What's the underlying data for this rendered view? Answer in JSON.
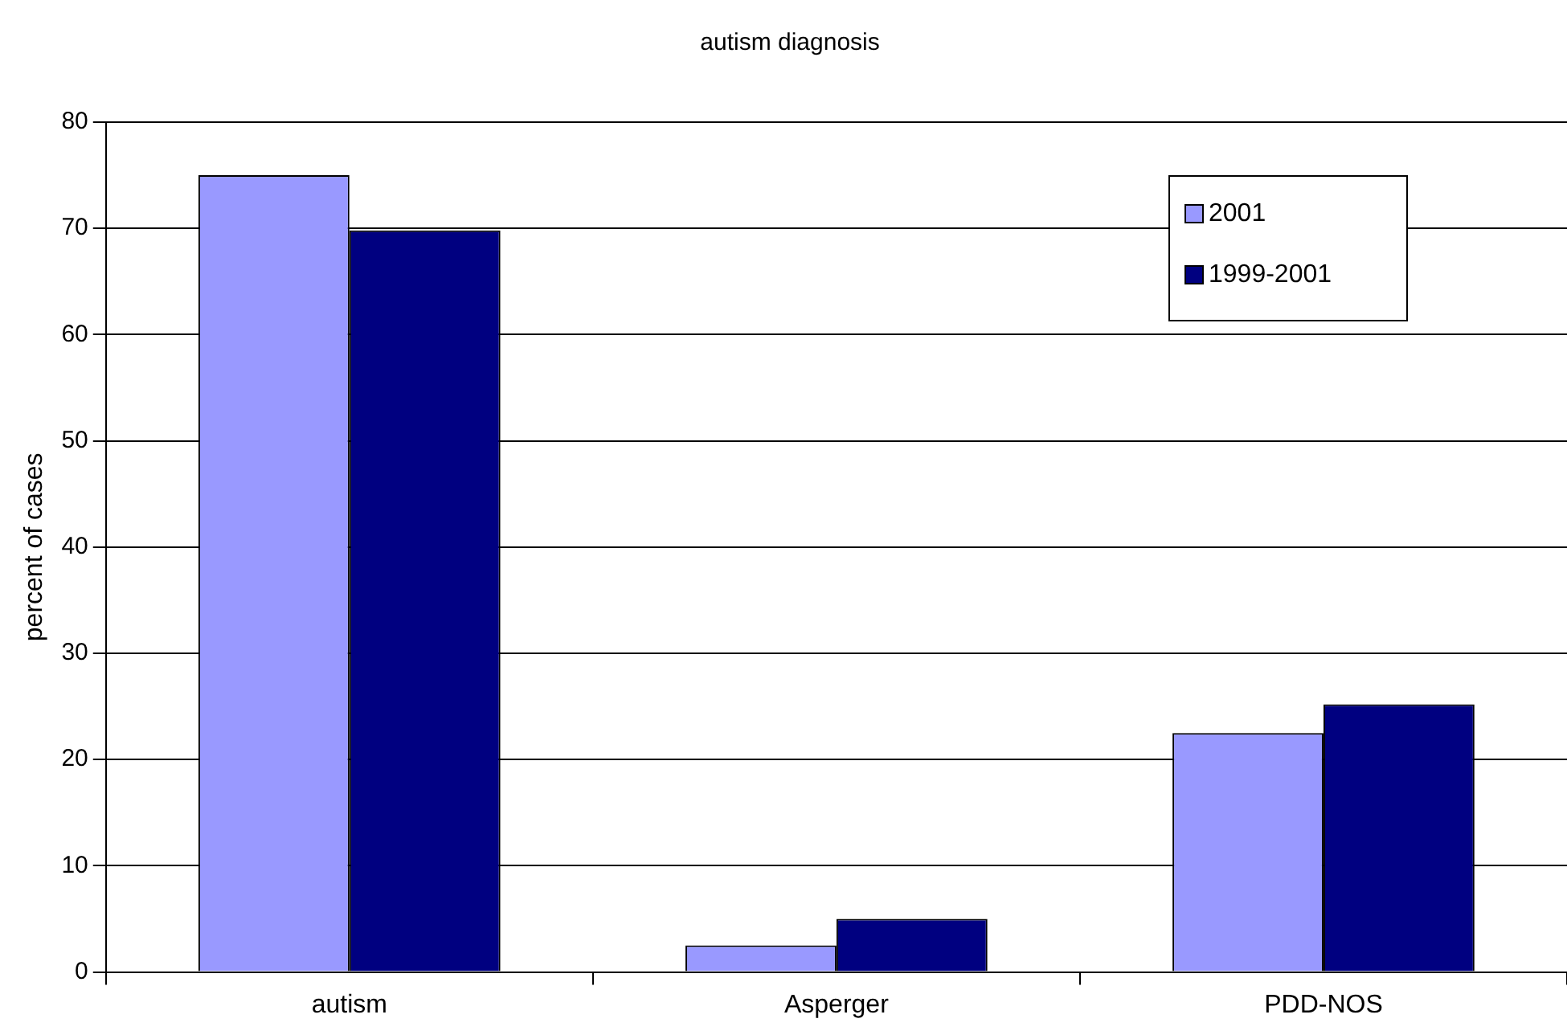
{
  "chart_data": {
    "type": "bar",
    "title": "autism diagnosis",
    "ylabel": "percent of cases",
    "categories": [
      "autism",
      "Asperger",
      "PDD-NOS"
    ],
    "series": [
      {
        "name": "2001",
        "color": "#9999ff",
        "values": [
          75,
          2.5,
          22.5
        ]
      },
      {
        "name": "1999-2001",
        "color": "#000080",
        "values": [
          69.8,
          5,
          25.2
        ]
      }
    ],
    "ylim": [
      0,
      80
    ],
    "yticks": [
      0,
      10,
      20,
      30,
      40,
      50,
      60,
      70,
      80
    ],
    "grid": "y",
    "legend": "top right"
  }
}
